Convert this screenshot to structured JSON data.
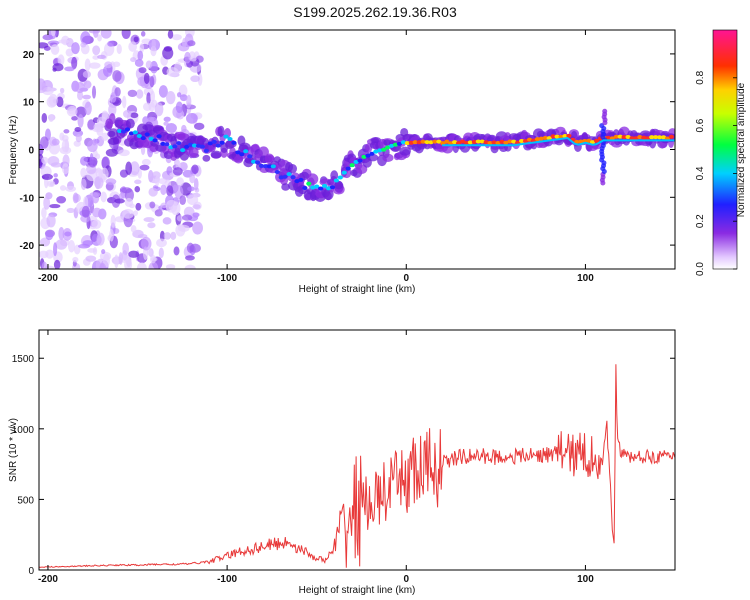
{
  "title": "S199.2025.262.19.36.R03",
  "chart_data": [
    {
      "type": "heatmap",
      "title": "",
      "xlabel": "Height of straight line (km)",
      "ylabel": "Frequency (Hz)",
      "xlim": [
        -205,
        150
      ],
      "ylim": [
        -25,
        25
      ],
      "x_ticks": [
        -200,
        -100,
        0,
        100
      ],
      "x_tick_labels": [
        "-200",
        "-100",
        "0",
        "100"
      ],
      "y_ticks": [
        -20,
        -10,
        0,
        10,
        20
      ],
      "y_tick_labels": [
        "-20",
        "-10",
        "0",
        "10",
        "20"
      ],
      "ridge": {
        "x": [
          -160,
          -145,
          -130,
          -115,
          -100,
          -90,
          -80,
          -70,
          -60,
          -50,
          -45,
          -40,
          -35,
          -30,
          -20,
          -10,
          0,
          20,
          40,
          60,
          80,
          90,
          95,
          100,
          105,
          110,
          115,
          130,
          150
        ],
        "y": [
          4,
          3,
          1,
          0,
          2,
          -1,
          -3,
          -5,
          -7,
          -8,
          -8,
          -7,
          -5,
          -3,
          -1,
          0.5,
          1.5,
          1.5,
          1.5,
          1.5,
          2.5,
          3,
          1.5,
          2,
          1.5,
          2.5,
          2.5,
          2.5,
          2.5
        ]
      },
      "colorbar": {
        "label": "Normalized spectral amplitude",
        "range": [
          0.0,
          1.0
        ],
        "ticks": [
          0.0,
          0.2,
          0.4,
          0.6,
          0.8
        ],
        "tick_labels": [
          "0.0",
          "0.2",
          "0.4",
          "0.6",
          "0.8"
        ],
        "colors": [
          "#ffffff",
          "#d9b3ff",
          "#8a2be2",
          "#2020ff",
          "#00d0ff",
          "#00ff00",
          "#ffff00",
          "#ff8000",
          "#ff0000",
          "#ff1493"
        ]
      }
    },
    {
      "type": "line",
      "title": "",
      "xlabel": "Height of straight line (km)",
      "ylabel": "SNR (10 * v/v)",
      "xlim": [
        -205,
        150
      ],
      "ylim": [
        0,
        1700
      ],
      "x_ticks": [
        -200,
        -100,
        0,
        100
      ],
      "x_tick_labels": [
        "-200",
        "-100",
        "0",
        "100"
      ],
      "y_ticks": [
        0,
        500,
        1000,
        1500
      ],
      "y_tick_labels": [
        "0",
        "500",
        "1000",
        "1500"
      ],
      "color": "#e83a3a",
      "series": [
        {
          "name": "SNR",
          "x": [
            -205,
            -190,
            -175,
            -160,
            -150,
            -140,
            -130,
            -120,
            -110,
            -100,
            -95,
            -90,
            -85,
            -80,
            -75,
            -70,
            -65,
            -60,
            -55,
            -50,
            -45,
            -40,
            -35,
            -30,
            -25,
            -20,
            -15,
            -10,
            -5,
            0,
            5,
            10,
            15,
            20,
            25,
            30,
            40,
            50,
            60,
            70,
            80,
            90,
            95,
            100,
            105,
            110,
            112,
            114,
            115,
            116,
            117,
            118,
            120,
            125,
            130,
            140,
            150
          ],
          "y": [
            20,
            25,
            30,
            35,
            35,
            40,
            40,
            45,
            60,
            100,
            120,
            140,
            150,
            170,
            180,
            190,
            200,
            150,
            120,
            80,
            70,
            150,
            300,
            400,
            470,
            470,
            520,
            560,
            600,
            660,
            690,
            700,
            730,
            760,
            780,
            800,
            810,
            800,
            805,
            810,
            820,
            830,
            810,
            820,
            800,
            810,
            1000,
            600,
            300,
            200,
            1400,
            900,
            820,
            800,
            800,
            805,
            800
          ]
        }
      ]
    }
  ]
}
